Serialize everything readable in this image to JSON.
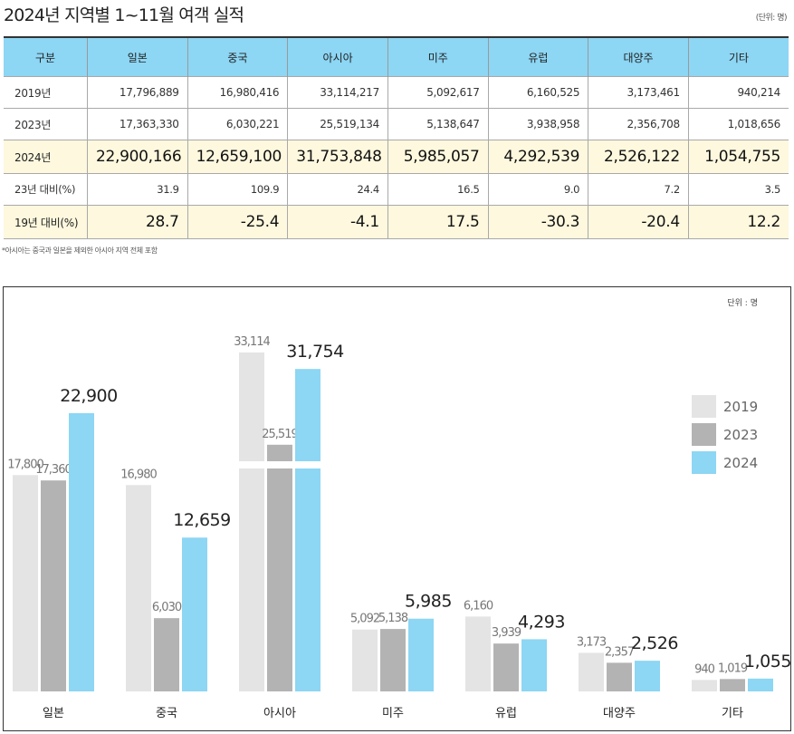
{
  "title": "2024년 지역별 1~11월 여객 실적",
  "unit_label": "(단위: 명)",
  "table": {
    "headers": [
      "구분",
      "일본",
      "중국",
      "아시아",
      "미주",
      "유럽",
      "대양주",
      "기타"
    ],
    "rows": [
      {
        "label": "2019년",
        "values": [
          "17,796,889",
          "16,980,416",
          "33,114,217",
          "5,092,617",
          "6,160,525",
          "3,173,461",
          "940,214"
        ]
      },
      {
        "label": "2023년",
        "values": [
          "17,363,330",
          "6,030,221",
          "25,519,134",
          "5,138,647",
          "3,938,958",
          "2,356,708",
          "1,018,656"
        ]
      },
      {
        "label": "2024년",
        "values": [
          "22,900,166",
          "12,659,100",
          "31,753,848",
          "5,985,057",
          "4,292,539",
          "2,526,122",
          "1,054,755"
        ]
      },
      {
        "label": "23년 대비(%)",
        "values": [
          "31.9",
          "109.9",
          "24.4",
          "16.5",
          "9.0",
          "7.2",
          "3.5"
        ]
      },
      {
        "label": "19년 대비(%)",
        "values": [
          "28.7",
          "-25.4",
          "-4.1",
          "17.5",
          "-30.3",
          "-20.4",
          "12.2"
        ]
      }
    ]
  },
  "footnote": "*아시아는 중국과 일본을 제외한 아시아 지역 전체 포함",
  "chart_data": {
    "type": "bar",
    "unit_label": "단위 : 명",
    "categories": [
      "일본",
      "중국",
      "아시아",
      "미주",
      "유럽",
      "대양주",
      "기타"
    ],
    "series": [
      {
        "name": "2019",
        "color": "#e4e4e4",
        "values": [
          17800,
          16980,
          33114,
          5092,
          6160,
          3173,
          940
        ],
        "labels": [
          "17,800",
          "16,980",
          "33,114",
          "5,092",
          "6,160",
          "3,173",
          "940"
        ]
      },
      {
        "name": "2023",
        "color": "#b3b3b3",
        "values": [
          17360,
          6030,
          25519,
          5138,
          3939,
          2357,
          1019
        ],
        "labels": [
          "17,360",
          "6,030",
          "25,519",
          "5,138",
          "3,939",
          "2,357",
          "1,019"
        ]
      },
      {
        "name": "2024",
        "color": "#8dd6f4",
        "values": [
          22900,
          12659,
          31754,
          5985,
          4293,
          2526,
          1055
        ],
        "labels": [
          "22,900",
          "12,659",
          "31,754",
          "5,985",
          "4,293",
          "2,526",
          "1,055"
        ]
      }
    ],
    "legend": [
      "2019",
      "2023",
      "2024"
    ],
    "legend_position": "right",
    "axis_break": {
      "category": "아시아"
    },
    "grid": false
  }
}
